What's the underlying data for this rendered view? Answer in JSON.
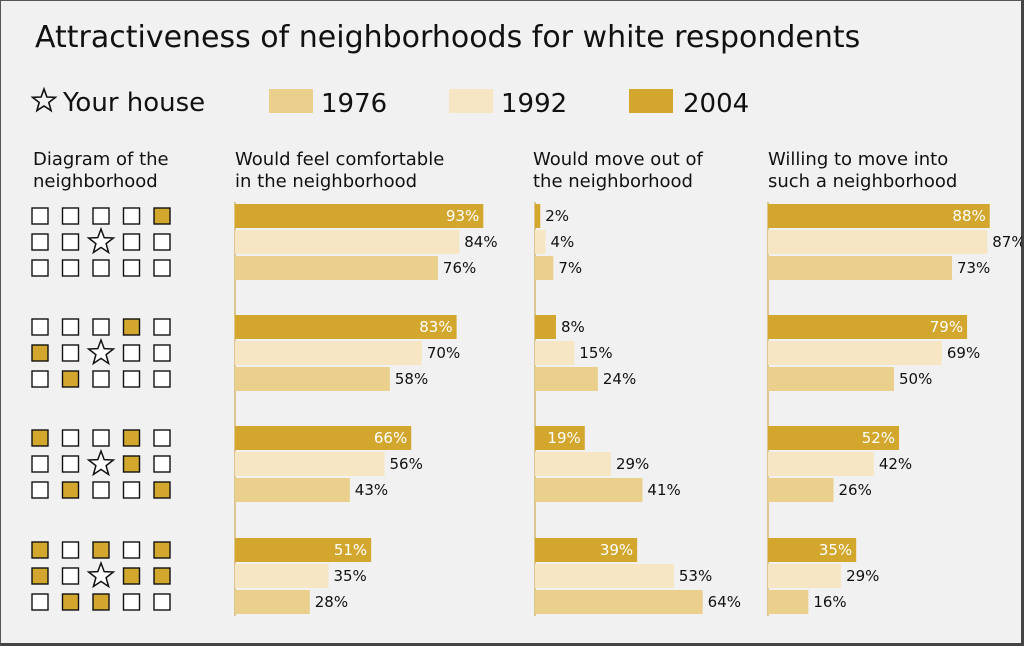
{
  "colors": {
    "y1976": "#ebcf8c",
    "y1992": "#f6e6c3",
    "y2004": "#d3a72d",
    "empty_square": "#ffffff",
    "axis_line": "#dcc68f"
  },
  "legend": {
    "house_label": "Your house",
    "house_icon": "star-icon",
    "items": [
      {
        "label": "1976",
        "color_key": "y1976"
      },
      {
        "label": "1992",
        "color_key": "y1992"
      },
      {
        "label": "2004",
        "color_key": "y2004"
      }
    ]
  },
  "chart_data": {
    "type": "bar",
    "title": "Attractiveness of neighborhoods for white respondents",
    "diagram_header": [
      "Diagram of the",
      "neighborhood"
    ],
    "series_order": [
      "2004",
      "1992",
      "1976"
    ],
    "panels": [
      {
        "header": [
          "Would feel comfortable",
          "in the neighborhood"
        ]
      },
      {
        "header": [
          "Would move out of",
          "the neighborhood"
        ]
      },
      {
        "header": [
          "Willing to move into",
          "such a neighborhood"
        ]
      }
    ],
    "groups": [
      {
        "diagram": [
          "....X.",
          "..*..",
          "....."
        ],
        "values": [
          [
            93,
            84,
            76
          ],
          [
            2,
            4,
            7
          ],
          [
            88,
            87,
            73
          ]
        ],
        "labels": [
          [
            "93%",
            "84%",
            "76%"
          ],
          [
            "2%",
            "4%",
            "7%"
          ],
          [
            "88%",
            "87%",
            "73%"
          ]
        ]
      },
      {
        "diagram": [
          "...X.",
          "X.*..",
          ".X..."
        ],
        "values": [
          [
            83,
            70,
            58
          ],
          [
            8,
            15,
            24
          ],
          [
            79,
            69,
            50
          ]
        ],
        "labels": [
          [
            "83%",
            "70%",
            "58%"
          ],
          [
            "8%",
            "15%",
            "24%"
          ],
          [
            "79%",
            "69%",
            "50%"
          ]
        ]
      },
      {
        "diagram": [
          "X..X.",
          "..*X.",
          ".X..X"
        ],
        "values": [
          [
            66,
            56,
            43
          ],
          [
            19,
            29,
            41
          ],
          [
            52,
            42,
            26
          ]
        ],
        "labels": [
          [
            "66%",
            "56%",
            "43%"
          ],
          [
            "19%",
            "29%",
            "41%"
          ],
          [
            "52%",
            "42%",
            "26%"
          ]
        ]
      },
      {
        "diagram": [
          "X.X.X",
          "X.*XX",
          ".XX.."
        ],
        "values": [
          [
            51,
            35,
            28
          ],
          [
            39,
            53,
            64
          ],
          [
            35,
            29,
            16
          ]
        ],
        "labels": [
          [
            "51%",
            "35%",
            "28%"
          ],
          [
            "39%",
            "53%",
            "64%"
          ],
          [
            "35%",
            "29%",
            "16%"
          ]
        ]
      }
    ]
  }
}
